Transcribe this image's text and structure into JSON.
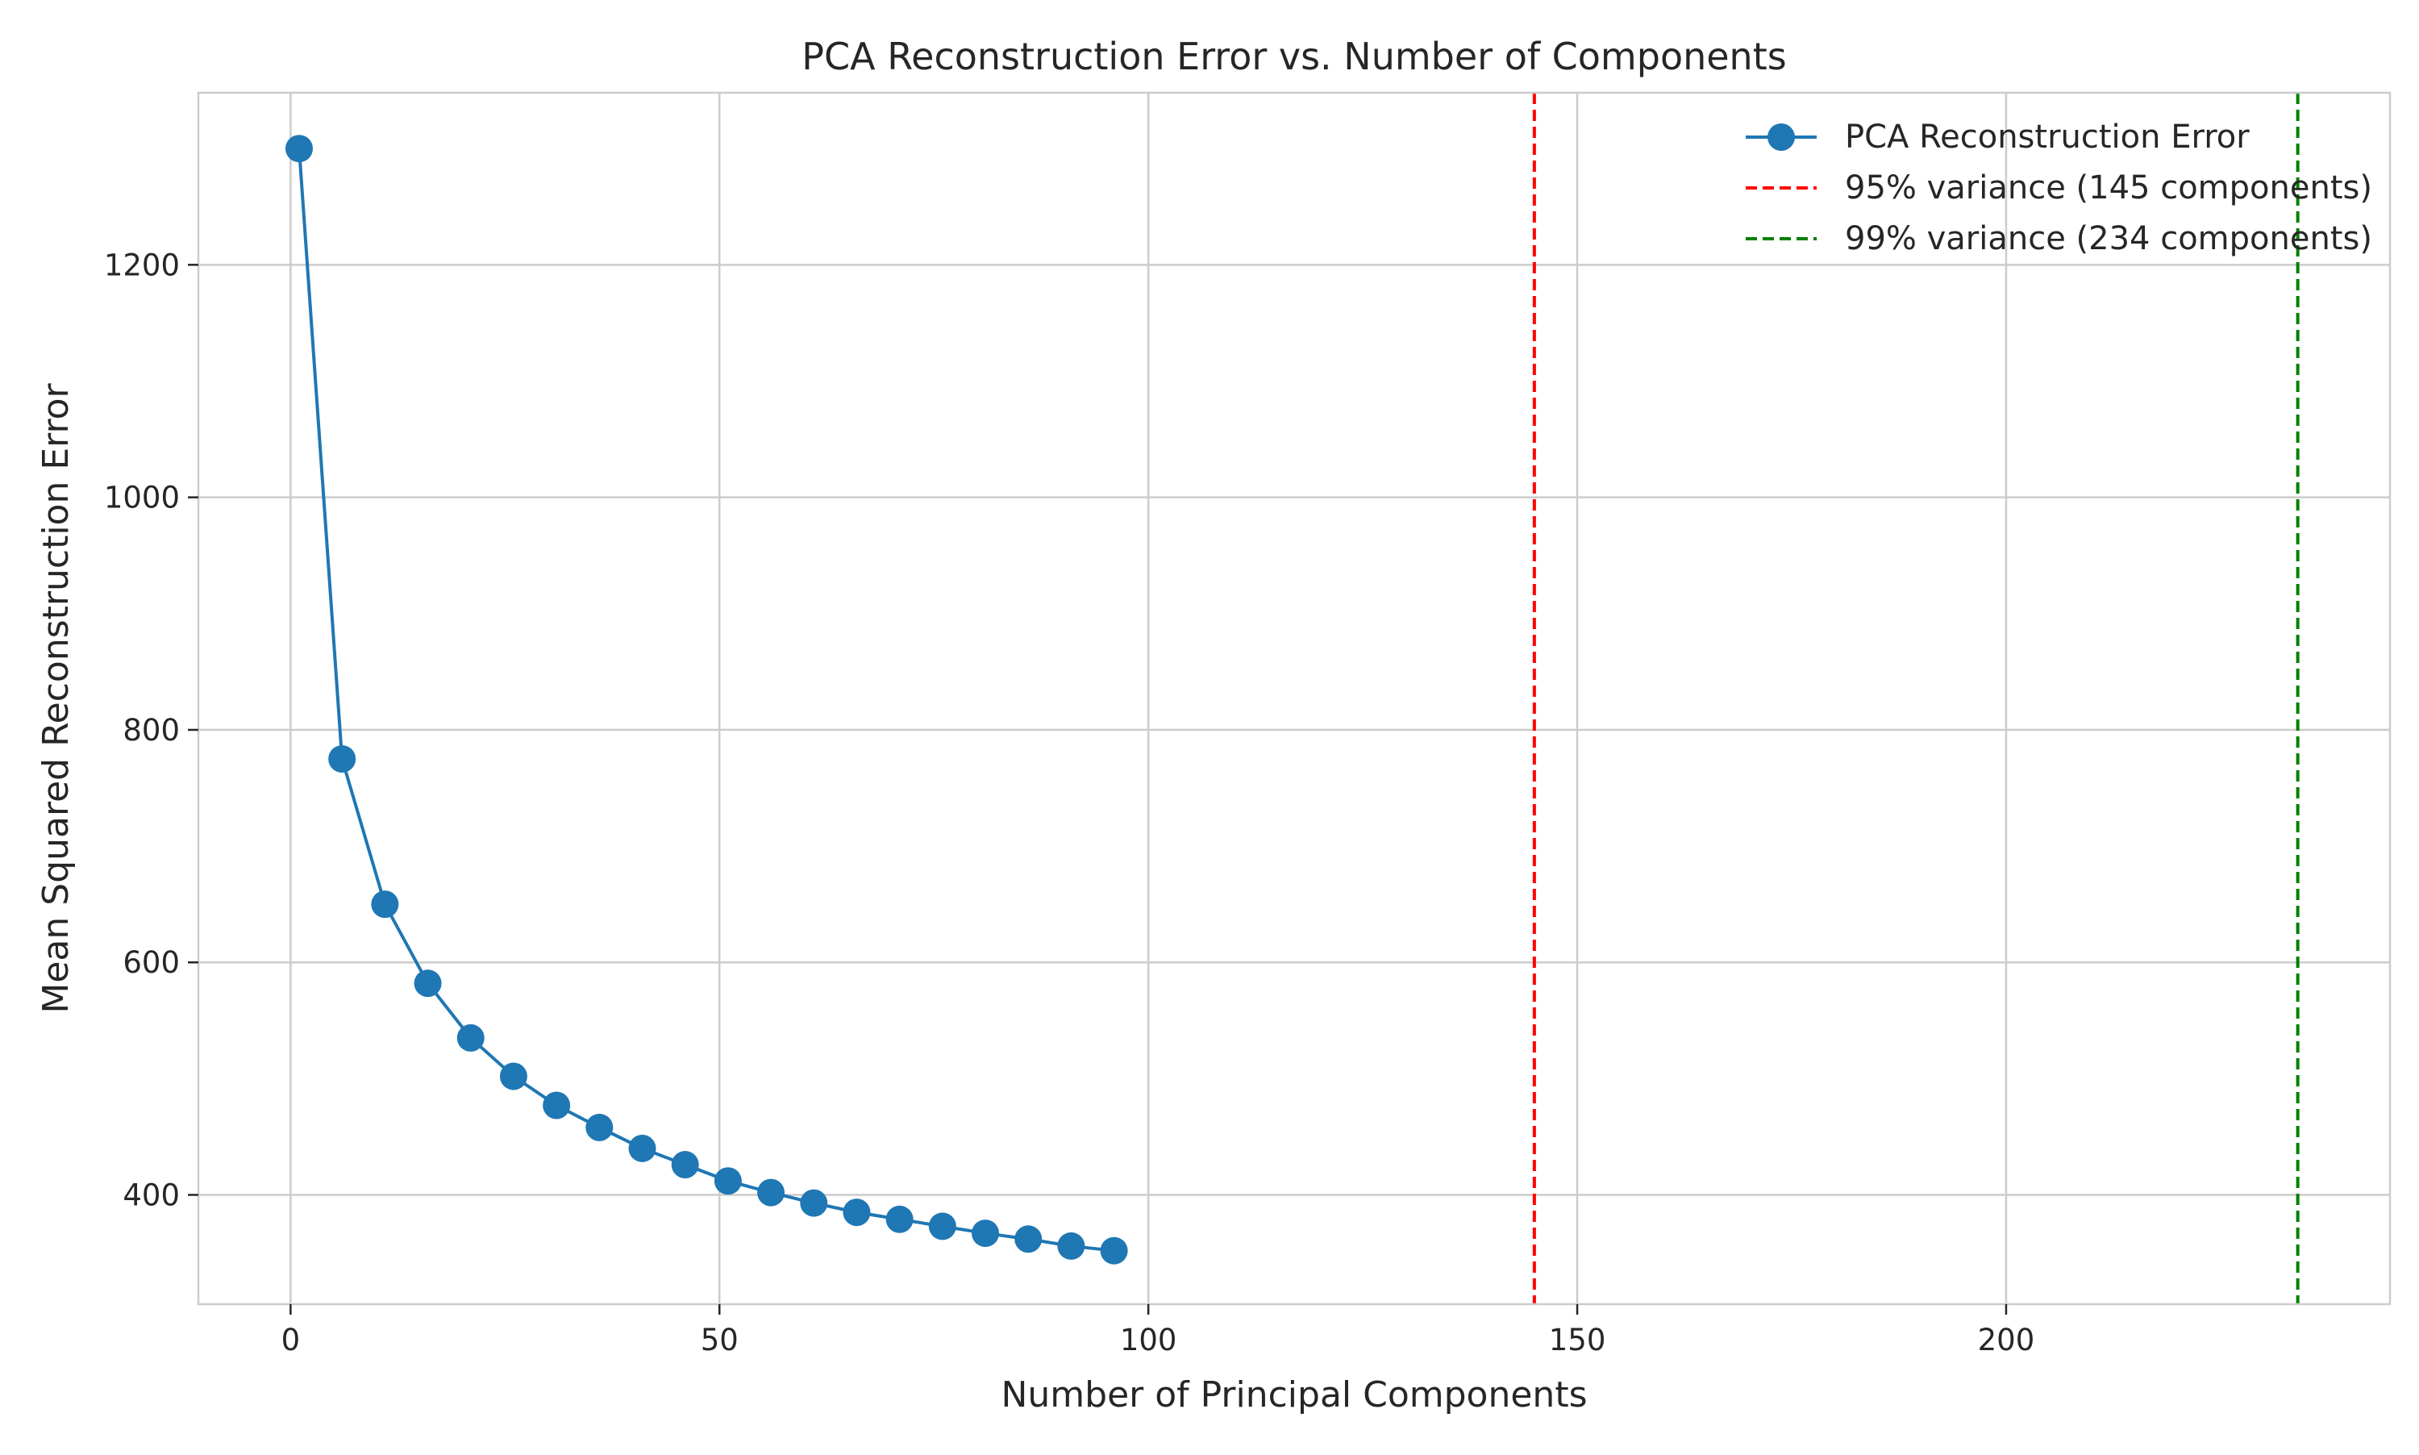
{
  "chart_data": {
    "type": "line",
    "title": "PCA Reconstruction Error vs. Number of Components",
    "xlabel": "Number of Principal Components",
    "ylabel": "Mean Squared Reconstruction Error",
    "xlim": [
      -10.75,
      244.75
    ],
    "ylim": [
      306,
      1348
    ],
    "xticks": [
      0,
      50,
      100,
      150,
      200
    ],
    "yticks": [
      400,
      600,
      800,
      1000,
      1200
    ],
    "grid": true,
    "legend_position": "top-right",
    "series": [
      {
        "name": "PCA Reconstruction Error",
        "color": "#1f77b4",
        "marker": "circle",
        "x": [
          1,
          6,
          11,
          16,
          21,
          26,
          31,
          36,
          41,
          46,
          51,
          56,
          61,
          66,
          71,
          76,
          81,
          86,
          91,
          96
        ],
        "y": [
          1300,
          775,
          650,
          582,
          535,
          502,
          477,
          458,
          440,
          426,
          412,
          402,
          393,
          385,
          379,
          373,
          367,
          362,
          356,
          352
        ]
      }
    ],
    "reference_lines": [
      {
        "name": "95% variance (145 components)",
        "x": 145,
        "color": "#ff0000",
        "style": "dashed"
      },
      {
        "name": "99% variance (234 components)",
        "x": 234,
        "color": "#008000",
        "style": "dashed"
      }
    ]
  }
}
